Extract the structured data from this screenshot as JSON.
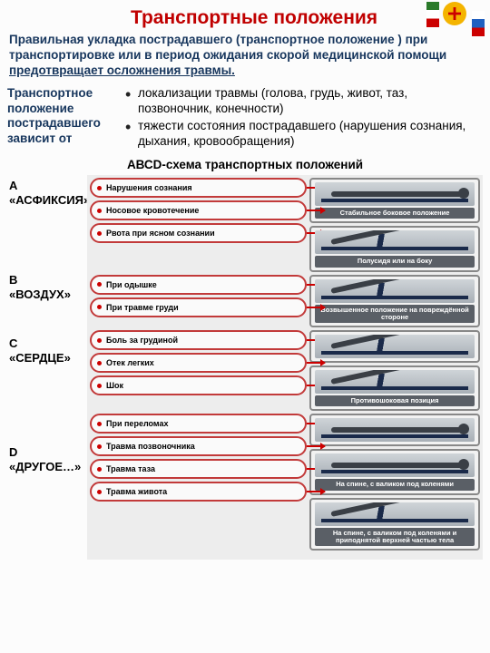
{
  "title": "Транспортные положения",
  "intro_parts": {
    "p1": "Правильная укладка пострадавшего   (транспортное положение ) при транспортировке  или в период  ожидания скорой медицинской помощи ",
    "p2": "предотвращает осложнения травмы."
  },
  "depends_label": "Транспортное положение пострадавшего зависит от",
  "bullets": [
    "локализации травмы  (голова, грудь, живот, таз, позвоночник, конечности)",
    "тяжести состояния пострадавшего (нарушения сознания, дыхания, кровообращения)"
  ],
  "scheme_title": "АВСD-схема транспортных положений",
  "letters": [
    {
      "code": "А",
      "word": "«АСФИКСИЯ»",
      "h": 104
    },
    {
      "code": "В",
      "word": "«ВОЗДУХ»",
      "h": 70
    },
    {
      "code": "С",
      "word": "«СЕРДЦЕ»",
      "h": 120
    },
    {
      "code": "D",
      "word": "«ДРУГОЕ…»",
      "h": 130
    }
  ],
  "rows": [
    {
      "color": "#c23a3a",
      "symptoms": [
        "Нарушения сознания",
        "Носовое кровотечение",
        "Рвота при ясном сознании"
      ],
      "positions": [
        {
          "label": "Стабильное боковое положение",
          "fig": "flat"
        },
        {
          "label": "Полусидя или на боку",
          "fig": "incline"
        }
      ]
    },
    {
      "color": "#c23a3a",
      "symptoms": [
        "При одышке",
        "При травме груди"
      ],
      "positions": [
        {
          "label": "Возвышенное положение на повреждённой стороне",
          "fig": "incline"
        }
      ]
    },
    {
      "color": "#c23a3a",
      "symptoms": [
        "Боль за грудиной",
        "Отек легких",
        "Шок"
      ],
      "positions": [
        {
          "label": "",
          "fig": "incline"
        },
        {
          "label": "Противошоковая позиция",
          "fig": "incline"
        }
      ]
    },
    {
      "color": "#c23a3a",
      "symptoms": [
        "При переломах",
        "Травма позвоночника",
        "Травма таза",
        "Травма живота"
      ],
      "positions": [
        {
          "label": "",
          "fig": "flat"
        },
        {
          "label": "На спине, с валиком под коленями",
          "fig": "flat"
        },
        {
          "label": "На спине, с валиком под коленями и приподнятой верхней частью тела",
          "fig": "incline"
        }
      ]
    }
  ],
  "colors": {
    "title": "#c00000",
    "navy": "#17365d",
    "sym_border": "#b84040",
    "arrow": "#c00000"
  }
}
